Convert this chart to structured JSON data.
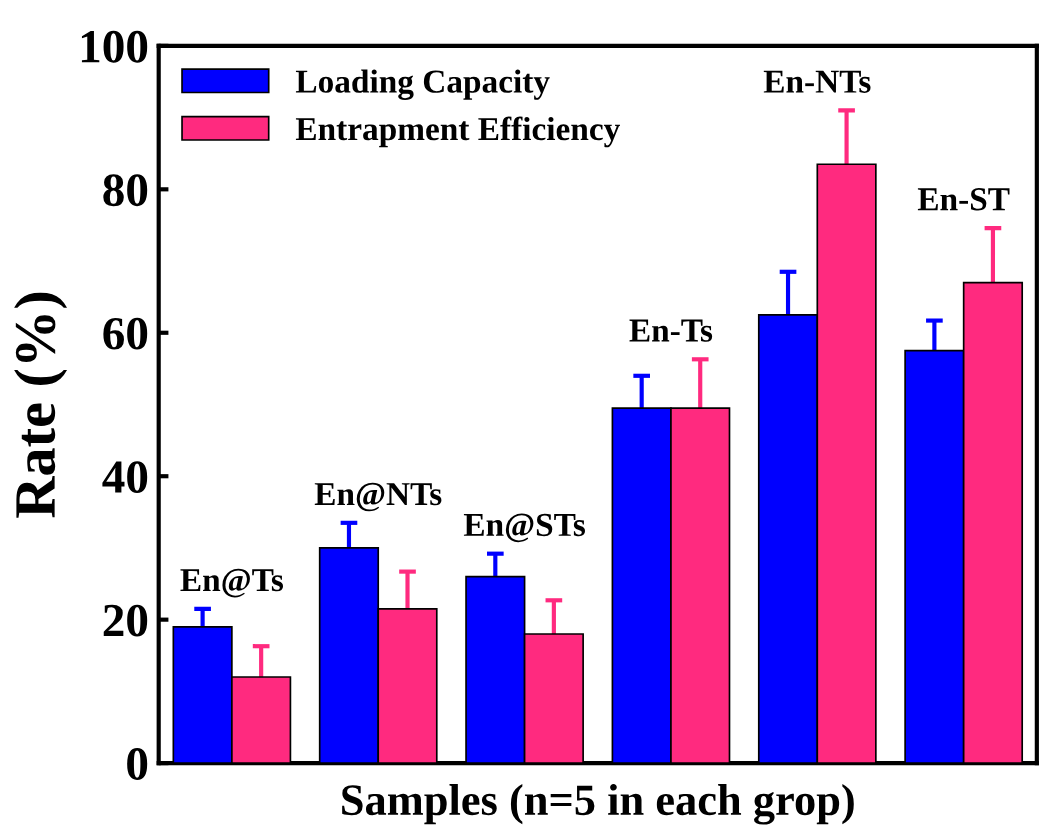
{
  "chart_data": {
    "type": "bar",
    "xlabel": "Samples (n=5 in each grop)",
    "ylabel": "Rate (%)",
    "categories": [
      "En@Ts",
      "En@NTs",
      "En@STs",
      "En-Ts",
      "En-NTs",
      "En-ST"
    ],
    "series": [
      {
        "name": "Loading Capacity",
        "color": "#0000ff",
        "values": [
          19,
          30,
          26,
          49.5,
          62.5,
          57.5
        ],
        "errors": [
          2.5,
          3.5,
          3.2,
          4.5,
          6,
          4.2
        ]
      },
      {
        "name": "Entrapment Efficiency",
        "color": "#ff2a7f",
        "values": [
          12,
          21.5,
          18,
          49.5,
          83.5,
          67
        ],
        "errors": [
          4.3,
          5.2,
          4.7,
          6.8,
          7.5,
          7.6
        ]
      }
    ],
    "ylim": [
      0,
      100
    ],
    "yticks": [
      0,
      20,
      40,
      60,
      80,
      100
    ],
    "grid": false,
    "legend": "top left"
  }
}
